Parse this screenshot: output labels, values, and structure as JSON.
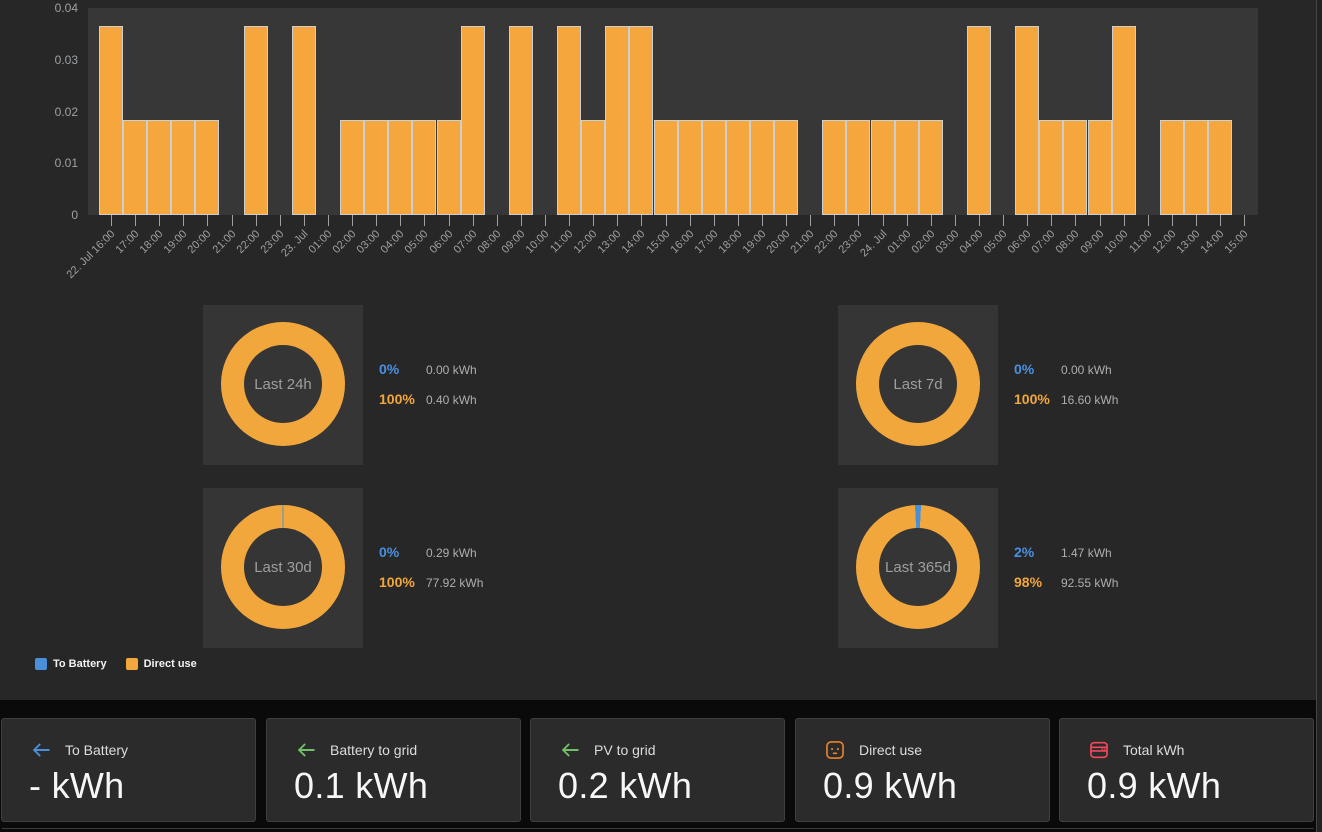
{
  "colors": {
    "bar_orange": "#F5A73E",
    "battery_blue": "#4A90D9",
    "blue_text": "#4A90E2",
    "orange_text": "#F2A73C",
    "grid_green": "#73BF69",
    "socket_orange": "#E8832A",
    "total_red": "#F2495C"
  },
  "chart_data": [
    {
      "type": "bar",
      "title": "",
      "series_name": "Direct use",
      "x": [
        "22. Jul 16:00",
        "17:00",
        "18:00",
        "19:00",
        "20:00",
        "21:00",
        "22:00",
        "23:00",
        "23. Jul",
        "01:00",
        "02:00",
        "03:00",
        "04:00",
        "05:00",
        "06:00",
        "07:00",
        "08:00",
        "09:00",
        "10:00",
        "11:00",
        "12:00",
        "13:00",
        "14:00",
        "15:00",
        "16:00",
        "17:00",
        "18:00",
        "19:00",
        "20:00",
        "21:00",
        "22:00",
        "23:00",
        "24. Jul",
        "01:00",
        "02:00",
        "03:00",
        "04:00",
        "05:00",
        "06:00",
        "07:00",
        "08:00",
        "09:00",
        "10:00",
        "11:00",
        "12:00",
        "13:00",
        "14:00",
        "15:00"
      ],
      "values": [
        0.0365,
        0.0183,
        0.0183,
        0.0183,
        0.0183,
        0,
        0.0365,
        0,
        0.0365,
        0,
        0.0183,
        0.0183,
        0.0183,
        0.0183,
        0.0183,
        0.0365,
        0,
        0.0365,
        0,
        0.0365,
        0.0183,
        0.0365,
        0.0365,
        0.0183,
        0.0183,
        0.0183,
        0.0183,
        0.0183,
        0.0183,
        0,
        0.0183,
        0.0183,
        0.0183,
        0.0183,
        0.0183,
        0,
        0.0365,
        0,
        0.0365,
        0.0183,
        0.0183,
        0.0183,
        0.0365,
        0,
        0.0183,
        0.0183,
        0.0183,
        0
      ],
      "xlabel": "",
      "ylabel": "",
      "ylim": [
        0,
        0.04
      ],
      "ytick_labels": [
        "0.04",
        "0.03",
        "0.02",
        "0.01",
        "0"
      ],
      "ytick_values": [
        0.04,
        0.03,
        0.02,
        0.01,
        0
      ],
      "grid": false,
      "legend_position": "none"
    },
    {
      "type": "pie",
      "title": "Last 24h",
      "labels": [
        "To Battery",
        "Direct use"
      ],
      "values_kwh": [
        0.0,
        0.4
      ],
      "pct_labels": [
        "0%",
        "100%"
      ],
      "kwh_labels": [
        "0.00 kWh",
        "0.40 kWh"
      ]
    },
    {
      "type": "pie",
      "title": "Last 7d",
      "labels": [
        "To Battery",
        "Direct use"
      ],
      "values_kwh": [
        0.0,
        16.6
      ],
      "pct_labels": [
        "0%",
        "100%"
      ],
      "kwh_labels": [
        "0.00 kWh",
        "16.60 kWh"
      ]
    },
    {
      "type": "pie",
      "title": "Last 30d",
      "labels": [
        "To Battery",
        "Direct use"
      ],
      "values_kwh": [
        0.29,
        77.92
      ],
      "pct_labels": [
        "0%",
        "100%"
      ],
      "kwh_labels": [
        "0.29 kWh",
        "77.92 kWh"
      ]
    },
    {
      "type": "pie",
      "title": "Last 365d",
      "labels": [
        "To Battery",
        "Direct use"
      ],
      "values_kwh": [
        1.47,
        92.55
      ],
      "pct_labels": [
        "2%",
        "98%"
      ],
      "kwh_labels": [
        "1.47 kWh",
        "92.55 kWh"
      ]
    }
  ],
  "legend": [
    {
      "label": "To Battery",
      "color": "#4A90D9"
    },
    {
      "label": "Direct use",
      "color": "#F2A73C"
    }
  ],
  "cards": [
    {
      "title": "To Battery",
      "value": "- kWh",
      "icon": "arrow-left-icon",
      "color": "#4A90D9"
    },
    {
      "title": "Battery to grid",
      "value": "0.1 kWh",
      "icon": "arrow-left-icon",
      "color": "#73BF69"
    },
    {
      "title": "PV to grid",
      "value": "0.2 kWh",
      "icon": "arrow-left-icon",
      "color": "#73BF69"
    },
    {
      "title": "Direct use",
      "value": "0.9 kWh",
      "icon": "power-socket-icon",
      "color": "#E8832A"
    },
    {
      "title": "Total kWh",
      "value": "0.9 kWh",
      "icon": "meter-icon",
      "color": "#F2495C"
    }
  ]
}
